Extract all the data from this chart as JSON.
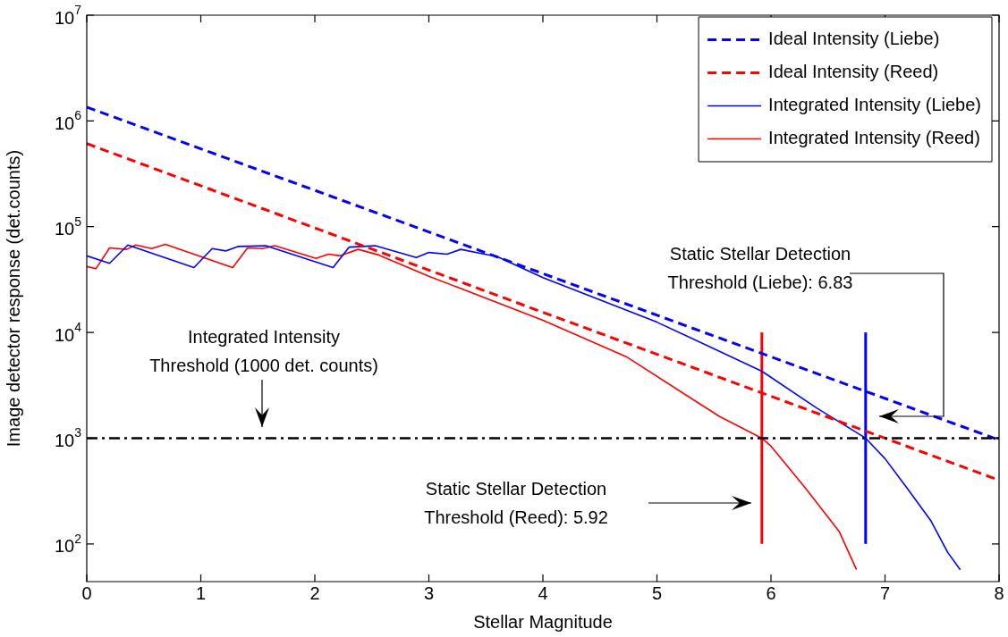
{
  "chart_data": {
    "type": "line",
    "xlabel": "Stellar Magnitude",
    "ylabel": "Image detector response (det.counts)",
    "xlim": [
      0,
      8
    ],
    "xticks": [
      0,
      1,
      2,
      3,
      4,
      5,
      6,
      7,
      8
    ],
    "ylim": [
      44,
      10000000
    ],
    "yticks": [
      {
        "value": 100,
        "label": "10$^{2}$"
      },
      {
        "value": 1000,
        "label": "10$^{3}$"
      },
      {
        "value": 10000,
        "label": "10$^{4}$"
      },
      {
        "value": 100000,
        "label": "10$^{5}$"
      },
      {
        "value": 1000000,
        "label": "10$^{6}$"
      },
      {
        "value": 10000000,
        "label": "10$^{7}$"
      }
    ],
    "log": "y",
    "legend": "top right",
    "series": [
      {
        "name": "Ideal Intensity (Liebe)",
        "color": "#0000ff",
        "line_style": "dashed",
        "x": [
          0,
          4,
          8
        ],
        "values": [
          1350000,
          36000,
          960
        ]
      },
      {
        "name": "Ideal Intensity (Reed)",
        "color": "#ff0000",
        "line_style": "dashed",
        "x": [
          0,
          4,
          8
        ],
        "values": [
          610000,
          15500,
          400
        ]
      },
      {
        "name": "Integrated Intensity (Liebe)",
        "color": "#0000ff",
        "line_style": "solid",
        "x": [
          0,
          0.2,
          0.36,
          0.94,
          1.1,
          1.22,
          1.33,
          1.57,
          2.16,
          2.3,
          2.53,
          2.89,
          3.0,
          3.16,
          3.28,
          3.45,
          3.6,
          4,
          5,
          5.92,
          6.4,
          6.83,
          7.0,
          7.2,
          7.4,
          7.55,
          7.66
        ],
        "values": [
          53000,
          45000,
          67000,
          41000,
          62000,
          59000,
          65000,
          66000,
          41000,
          64000,
          66000,
          51000,
          57000,
          55000,
          61000,
          56000,
          52000,
          33000,
          12500,
          4300,
          1930,
          1000,
          640,
          330,
          167,
          83,
          57
        ]
      },
      {
        "name": "Integrated Intensity (Reed)",
        "color": "#ff0000",
        "line_style": "solid",
        "x": [
          0,
          0.08,
          0.2,
          0.35,
          0.43,
          0.57,
          0.69,
          1.28,
          1.41,
          1.54,
          1.65,
          2.01,
          2.12,
          2.22,
          2.38,
          2.56,
          3,
          4,
          4.73,
          5.55,
          5.92,
          6.0,
          6.3,
          6.6,
          6.75
        ],
        "values": [
          42000,
          40000,
          63000,
          61000,
          67000,
          62000,
          68000,
          41000,
          63000,
          62000,
          66000,
          50000,
          55000,
          53000,
          61000,
          54000,
          34000,
          13000,
          5900,
          1600,
          1000,
          840,
          340,
          130,
          57
        ]
      },
      {
        "color": "#ff0000",
        "line_style": "solid",
        "x": [
          5.92,
          5.92
        ],
        "values": [
          100,
          10000
        ]
      },
      {
        "color": "#0000ff",
        "line_style": "solid",
        "x": [
          6.83,
          6.83
        ],
        "values": [
          100,
          10000
        ]
      }
    ],
    "ref_lines": [
      {
        "axis": "y",
        "value": 1000,
        "color": "#000000",
        "line_style": "dashed"
      }
    ],
    "annotations": [
      "Integrated Intensity\nThreshold (1000 det. counts)",
      "Static Stellar Detection\nThreshold (Liebe): 6.83",
      "Static Stellar Detection\nThreshold (Reed): 5.92"
    ]
  }
}
